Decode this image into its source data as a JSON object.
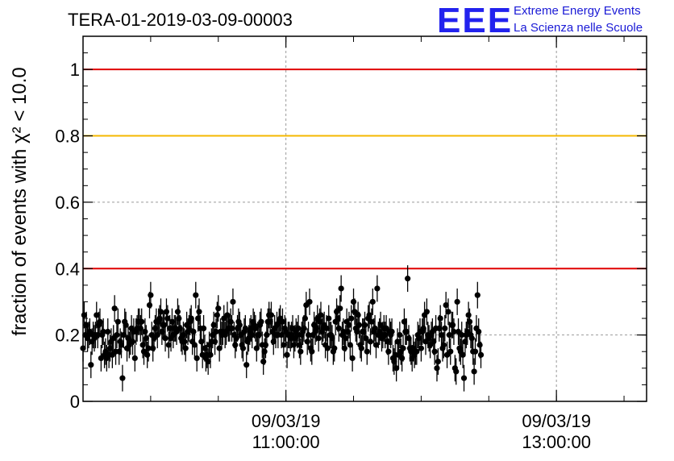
{
  "title": "TERA-01-2019-03-09-00003",
  "logo": {
    "mark": "EEE",
    "line1": "Extreme Energy Events",
    "line2": "La Scienza nelle Scuole",
    "color": "#2222ee"
  },
  "chart_data": {
    "type": "scatter",
    "title": "TERA-01-2019-03-09-00003",
    "ylabel": "fraction of events with χ² < 10.0",
    "ylim": [
      0,
      1.1
    ],
    "xlim": [
      "2019-03-09T09:30:00",
      "2019-03-09T13:40:00"
    ],
    "yticks": [
      0,
      0.2,
      0.4,
      0.6,
      0.8,
      1
    ],
    "ytick_labels": [
      "0",
      "0.2",
      "0.4",
      "0.6",
      "0.8",
      "1"
    ],
    "xticks": [
      {
        "date": "09/03/19",
        "time": "11:00:00",
        "value": "2019-03-09T11:00:00"
      },
      {
        "date": "09/03/19",
        "time": "13:00:00",
        "value": "2019-03-09T13:00:00"
      }
    ],
    "grid": true,
    "reference_lines": [
      {
        "y": 1.0,
        "color": "#e00000"
      },
      {
        "y": 0.8,
        "color": "#f5b800"
      },
      {
        "y": 0.4,
        "color": "#e00000"
      }
    ],
    "marker_color": "#000000",
    "points": {
      "start": "2019-03-09T09:30:00",
      "step_seconds": 30,
      "y": [
        0.16,
        0.26,
        0.2,
        0.23,
        0.19,
        0.2,
        0.21,
        0.11,
        0.18,
        0.2,
        0.19,
        0.2,
        0.26,
        0.2,
        0.23,
        0.24,
        0.13,
        0.2,
        0.21,
        0.14,
        0.15,
        0.13,
        0.21,
        0.14,
        0.16,
        0.18,
        0.14,
        0.19,
        0.28,
        0.15,
        0.2,
        0.24,
        0.15,
        0.18,
        0.17,
        0.07,
        0.2,
        0.24,
        0.23,
        0.16,
        0.19,
        0.17,
        0.18,
        0.22,
        0.18,
        0.21,
        0.13,
        0.21,
        0.22,
        0.24,
        0.24,
        0.22,
        0.24,
        0.17,
        0.15,
        0.21,
        0.19,
        0.14,
        0.16,
        0.29,
        0.32,
        0.2,
        0.16,
        0.19,
        0.22,
        0.24,
        0.2,
        0.24,
        0.25,
        0.27,
        0.21,
        0.23,
        0.23,
        0.19,
        0.27,
        0.25,
        0.17,
        0.22,
        0.19,
        0.24,
        0.2,
        0.22,
        0.22,
        0.21,
        0.27,
        0.25,
        0.22,
        0.19,
        0.18,
        0.2,
        0.18,
        0.16,
        0.23,
        0.21,
        0.22,
        0.24,
        0.25,
        0.18,
        0.21,
        0.17,
        0.32,
        0.13,
        0.25,
        0.27,
        0.22,
        0.18,
        0.14,
        0.22,
        0.16,
        0.13,
        0.14,
        0.12,
        0.17,
        0.14,
        0.18,
        0.2,
        0.23,
        0.18,
        0.21,
        0.26,
        0.28,
        0.16,
        0.21,
        0.2,
        0.21,
        0.25,
        0.2,
        0.21,
        0.26,
        0.22,
        0.22,
        0.24,
        0.22,
        0.3,
        0.2,
        0.17,
        0.19,
        0.22,
        0.24,
        0.23,
        0.2,
        0.17,
        0.16,
        0.21,
        0.22,
        0.11,
        0.18,
        0.19,
        0.21,
        0.22,
        0.2,
        0.24,
        0.23,
        0.22,
        0.16,
        0.2,
        0.2,
        0.23,
        0.24,
        0.17,
        0.12,
        0.15,
        0.17,
        0.2,
        0.24,
        0.26,
        0.24,
        0.26,
        0.21,
        0.18,
        0.22,
        0.2,
        0.23,
        0.2,
        0.24,
        0.25,
        0.2,
        0.24,
        0.17,
        0.22,
        0.21,
        0.14,
        0.2,
        0.2,
        0.19,
        0.2,
        0.22,
        0.17,
        0.19,
        0.21,
        0.2,
        0.22,
        0.17,
        0.15,
        0.2,
        0.21,
        0.22,
        0.25,
        0.29,
        0.18,
        0.2,
        0.3,
        0.16,
        0.15,
        0.2,
        0.23,
        0.21,
        0.22,
        0.25,
        0.19,
        0.24,
        0.26,
        0.21,
        0.22,
        0.23,
        0.17,
        0.22,
        0.16,
        0.25,
        0.2,
        0.2,
        0.19,
        0.15,
        0.16,
        0.24,
        0.27,
        0.25,
        0.22,
        0.28,
        0.34,
        0.2,
        0.21,
        0.16,
        0.19,
        0.24,
        0.21,
        0.23,
        0.17,
        0.25,
        0.13,
        0.3,
        0.27,
        0.22,
        0.21,
        0.26,
        0.23,
        0.17,
        0.16,
        0.21,
        0.21,
        0.23,
        0.19,
        0.15,
        0.25,
        0.26,
        0.18,
        0.24,
        0.3,
        0.21,
        0.22,
        0.17,
        0.34,
        0.2,
        0.21,
        0.23,
        0.19,
        0.2,
        0.22,
        0.2,
        0.22,
        0.18,
        0.15,
        0.21,
        0.2,
        0.21,
        0.13,
        0.12,
        0.14,
        0.1,
        0.18,
        0.14,
        0.2,
        0.15,
        0.13,
        0.16,
        0.24,
        0.21,
        0.21,
        0.37,
        0.19,
        0.16,
        0.15,
        0.13,
        0.16,
        0.14,
        0.15,
        0.15,
        0.2,
        0.19,
        0.21,
        0.16,
        0.21,
        0.22,
        0.26,
        0.18,
        0.27,
        0.2,
        0.19,
        0.17,
        0.2,
        0.21,
        0.18,
        0.15,
        0.22,
        0.1,
        0.12,
        0.22,
        0.25,
        0.2,
        0.16,
        0.17,
        0.22,
        0.29,
        0.14,
        0.27,
        0.2,
        0.15,
        0.23,
        0.23,
        0.21,
        0.1,
        0.09,
        0.3,
        0.21,
        0.16,
        0.15,
        0.2,
        0.14,
        0.07,
        0.18,
        0.2,
        0.21,
        0.26,
        0.24,
        0.2,
        0.19,
        0.15,
        0.09,
        0.15,
        0.22,
        0.32,
        0.21,
        0.17,
        0.14
      ],
      "err": 0.04
    }
  }
}
